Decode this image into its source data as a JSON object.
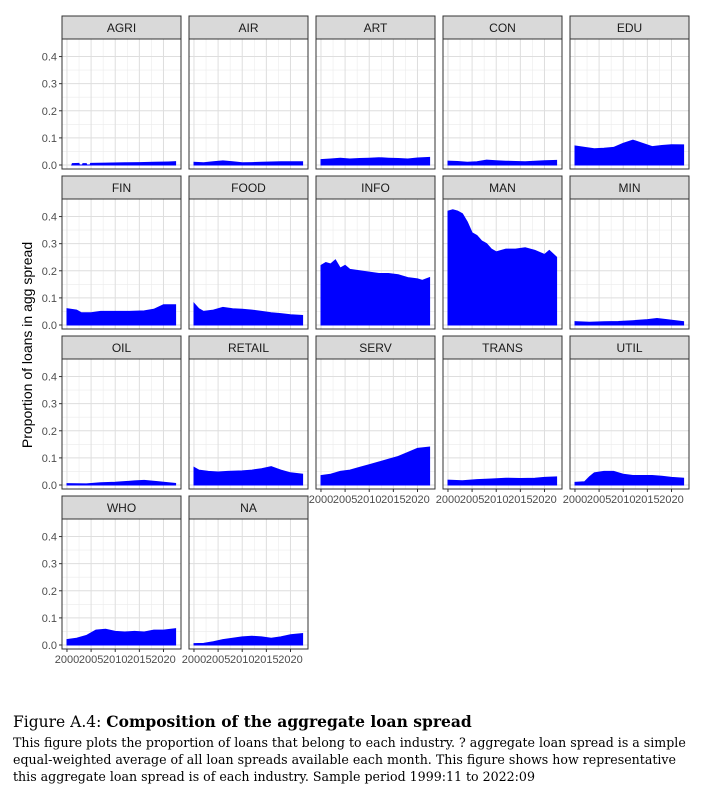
{
  "chart_data": {
    "type": "area",
    "ylabel": "Proportion of loans in agg spread",
    "ylim": [
      0,
      0.45
    ],
    "y_ticks": [
      "0.0",
      "0.1",
      "0.2",
      "0.3",
      "0.4"
    ],
    "x_ticks": [
      "2000",
      "2005",
      "2010",
      "2015",
      "2020"
    ],
    "xlim": [
      1999.8,
      2022.8
    ],
    "color": "#0000ff",
    "panel_header_color": "#d9d9d9",
    "grid": true,
    "facets": [
      {
        "name": "AGRI",
        "points": [
          [
            2001.0,
            0.0
          ],
          [
            2001.1,
            0.005
          ],
          [
            2002.5,
            0.006
          ],
          [
            2002.6,
            0.0
          ],
          [
            2003.2,
            0.0
          ],
          [
            2003.3,
            0.005
          ],
          [
            2004.0,
            0.005
          ],
          [
            2004.1,
            0.0
          ],
          [
            2004.8,
            0.0
          ],
          [
            2004.9,
            0.006
          ],
          [
            2008,
            0.007
          ],
          [
            2012,
            0.008
          ],
          [
            2015,
            0.009
          ],
          [
            2018,
            0.01
          ],
          [
            2021,
            0.011
          ],
          [
            2022.5,
            0.012
          ]
        ]
      },
      {
        "name": "AIR",
        "points": [
          [
            2000,
            0.01
          ],
          [
            2002,
            0.008
          ],
          [
            2004,
            0.012
          ],
          [
            2006,
            0.015
          ],
          [
            2008,
            0.012
          ],
          [
            2010,
            0.008
          ],
          [
            2012,
            0.009
          ],
          [
            2014,
            0.01
          ],
          [
            2016,
            0.011
          ],
          [
            2018,
            0.012
          ],
          [
            2020,
            0.012
          ],
          [
            2022.5,
            0.012
          ]
        ]
      },
      {
        "name": "ART",
        "points": [
          [
            2000,
            0.02
          ],
          [
            2002,
            0.022
          ],
          [
            2004,
            0.025
          ],
          [
            2006,
            0.022
          ],
          [
            2008,
            0.024
          ],
          [
            2010,
            0.025
          ],
          [
            2012,
            0.027
          ],
          [
            2014,
            0.025
          ],
          [
            2016,
            0.024
          ],
          [
            2018,
            0.022
          ],
          [
            2020,
            0.026
          ],
          [
            2022.5,
            0.028
          ]
        ]
      },
      {
        "name": "CON",
        "points": [
          [
            2000,
            0.014
          ],
          [
            2002,
            0.013
          ],
          [
            2004,
            0.01
          ],
          [
            2006,
            0.012
          ],
          [
            2008,
            0.018
          ],
          [
            2010,
            0.016
          ],
          [
            2012,
            0.014
          ],
          [
            2014,
            0.013
          ],
          [
            2016,
            0.012
          ],
          [
            2018,
            0.014
          ],
          [
            2020,
            0.016
          ],
          [
            2022.5,
            0.017
          ]
        ]
      },
      {
        "name": "EDU",
        "points": [
          [
            2000,
            0.07
          ],
          [
            2002,
            0.065
          ],
          [
            2004,
            0.06
          ],
          [
            2006,
            0.062
          ],
          [
            2008,
            0.065
          ],
          [
            2010,
            0.08
          ],
          [
            2012,
            0.092
          ],
          [
            2014,
            0.08
          ],
          [
            2016,
            0.068
          ],
          [
            2018,
            0.072
          ],
          [
            2020,
            0.075
          ],
          [
            2022.5,
            0.074
          ]
        ]
      },
      {
        "name": "FIN",
        "points": [
          [
            2000,
            0.06
          ],
          [
            2002,
            0.055
          ],
          [
            2003,
            0.045
          ],
          [
            2005,
            0.045
          ],
          [
            2007,
            0.05
          ],
          [
            2010,
            0.05
          ],
          [
            2013,
            0.05
          ],
          [
            2016,
            0.052
          ],
          [
            2018,
            0.058
          ],
          [
            2020,
            0.075
          ],
          [
            2022.5,
            0.075
          ]
        ]
      },
      {
        "name": "FOOD",
        "points": [
          [
            2000,
            0.08
          ],
          [
            2001,
            0.06
          ],
          [
            2002,
            0.05
          ],
          [
            2004,
            0.055
          ],
          [
            2006,
            0.065
          ],
          [
            2008,
            0.06
          ],
          [
            2010,
            0.058
          ],
          [
            2012,
            0.055
          ],
          [
            2014,
            0.05
          ],
          [
            2016,
            0.045
          ],
          [
            2018,
            0.042
          ],
          [
            2020,
            0.038
          ],
          [
            2022.5,
            0.035
          ]
        ]
      },
      {
        "name": "INFO",
        "points": [
          [
            2000,
            0.22
          ],
          [
            2001,
            0.23
          ],
          [
            2002,
            0.225
          ],
          [
            2003,
            0.24
          ],
          [
            2004,
            0.21
          ],
          [
            2005,
            0.22
          ],
          [
            2006,
            0.205
          ],
          [
            2008,
            0.2
          ],
          [
            2010,
            0.195
          ],
          [
            2012,
            0.19
          ],
          [
            2014,
            0.19
          ],
          [
            2016,
            0.185
          ],
          [
            2018,
            0.175
          ],
          [
            2020,
            0.17
          ],
          [
            2021,
            0.165
          ],
          [
            2022.5,
            0.175
          ]
        ]
      },
      {
        "name": "MAN",
        "points": [
          [
            2000,
            0.42
          ],
          [
            2001,
            0.425
          ],
          [
            2002,
            0.42
          ],
          [
            2003,
            0.41
          ],
          [
            2004,
            0.38
          ],
          [
            2005,
            0.34
          ],
          [
            2006,
            0.33
          ],
          [
            2007,
            0.31
          ],
          [
            2008,
            0.3
          ],
          [
            2009,
            0.28
          ],
          [
            2010,
            0.27
          ],
          [
            2012,
            0.28
          ],
          [
            2014,
            0.28
          ],
          [
            2016,
            0.285
          ],
          [
            2018,
            0.275
          ],
          [
            2020,
            0.26
          ],
          [
            2021,
            0.275
          ],
          [
            2022.5,
            0.25
          ]
        ]
      },
      {
        "name": "MIN",
        "points": [
          [
            2000,
            0.012
          ],
          [
            2003,
            0.01
          ],
          [
            2006,
            0.012
          ],
          [
            2009,
            0.013
          ],
          [
            2012,
            0.016
          ],
          [
            2015,
            0.02
          ],
          [
            2017,
            0.024
          ],
          [
            2019,
            0.02
          ],
          [
            2022.5,
            0.012
          ]
        ]
      },
      {
        "name": "OIL",
        "points": [
          [
            2000,
            0.005
          ],
          [
            2004,
            0.004
          ],
          [
            2007,
            0.008
          ],
          [
            2010,
            0.01
          ],
          [
            2014,
            0.015
          ],
          [
            2016,
            0.017
          ],
          [
            2019,
            0.012
          ],
          [
            2022.5,
            0.006
          ]
        ]
      },
      {
        "name": "RETAIL",
        "points": [
          [
            2000,
            0.065
          ],
          [
            2001,
            0.055
          ],
          [
            2003,
            0.05
          ],
          [
            2005,
            0.048
          ],
          [
            2007,
            0.05
          ],
          [
            2010,
            0.052
          ],
          [
            2012,
            0.055
          ],
          [
            2014,
            0.06
          ],
          [
            2016,
            0.068
          ],
          [
            2018,
            0.055
          ],
          [
            2020,
            0.045
          ],
          [
            2022.5,
            0.04
          ]
        ]
      },
      {
        "name": "SERV",
        "points": [
          [
            2000,
            0.035
          ],
          [
            2002,
            0.04
          ],
          [
            2004,
            0.05
          ],
          [
            2006,
            0.055
          ],
          [
            2008,
            0.065
          ],
          [
            2010,
            0.075
          ],
          [
            2012,
            0.085
          ],
          [
            2014,
            0.095
          ],
          [
            2016,
            0.105
          ],
          [
            2018,
            0.12
          ],
          [
            2020,
            0.135
          ],
          [
            2022.5,
            0.14
          ]
        ]
      },
      {
        "name": "TRANS",
        "points": [
          [
            2000,
            0.018
          ],
          [
            2003,
            0.016
          ],
          [
            2006,
            0.02
          ],
          [
            2009,
            0.022
          ],
          [
            2012,
            0.025
          ],
          [
            2015,
            0.024
          ],
          [
            2018,
            0.025
          ],
          [
            2020,
            0.028
          ],
          [
            2022.5,
            0.03
          ]
        ]
      },
      {
        "name": "UTIL",
        "points": [
          [
            2000,
            0.01
          ],
          [
            2002,
            0.012
          ],
          [
            2003,
            0.03
          ],
          [
            2004,
            0.045
          ],
          [
            2006,
            0.05
          ],
          [
            2008,
            0.05
          ],
          [
            2010,
            0.04
          ],
          [
            2012,
            0.035
          ],
          [
            2014,
            0.035
          ],
          [
            2016,
            0.035
          ],
          [
            2018,
            0.032
          ],
          [
            2020,
            0.028
          ],
          [
            2022.5,
            0.025
          ]
        ]
      },
      {
        "name": "WHO",
        "points": [
          [
            2000,
            0.02
          ],
          [
            2002,
            0.025
          ],
          [
            2004,
            0.035
          ],
          [
            2006,
            0.055
          ],
          [
            2008,
            0.058
          ],
          [
            2010,
            0.05
          ],
          [
            2012,
            0.048
          ],
          [
            2014,
            0.05
          ],
          [
            2016,
            0.048
          ],
          [
            2018,
            0.055
          ],
          [
            2020,
            0.055
          ],
          [
            2022.5,
            0.06
          ]
        ]
      },
      {
        "name": "NA",
        "points": [
          [
            2000,
            0.005
          ],
          [
            2002,
            0.006
          ],
          [
            2004,
            0.012
          ],
          [
            2006,
            0.02
          ],
          [
            2008,
            0.025
          ],
          [
            2010,
            0.03
          ],
          [
            2012,
            0.032
          ],
          [
            2014,
            0.03
          ],
          [
            2016,
            0.025
          ],
          [
            2018,
            0.03
          ],
          [
            2020,
            0.038
          ],
          [
            2022.5,
            0.042
          ]
        ]
      }
    ]
  },
  "caption": {
    "figure_label": "Figure A.4:",
    "title": "Composition of the aggregate loan spread",
    "body": "This figure plots the proportion of loans that belong to each industry. ? aggregate loan spread is a simple equal-weighted average of all loan spreads available each month. This figure shows how representative this aggregate loan spread is of each industry. Sample period 1999:11 to 2022:09"
  }
}
